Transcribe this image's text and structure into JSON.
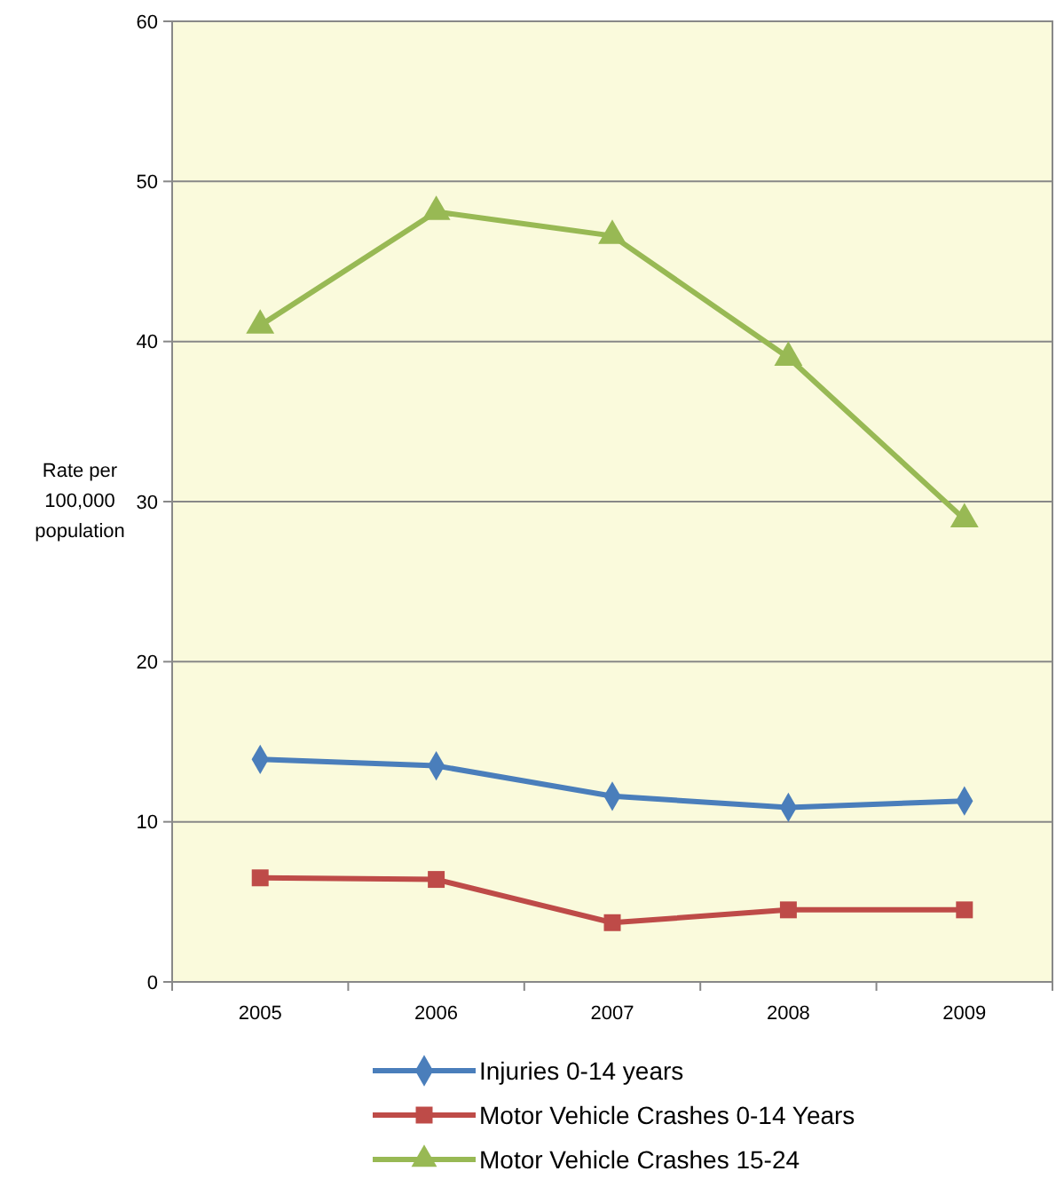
{
  "chart_data": {
    "type": "line",
    "ylabel": "Rate per 100,000 population",
    "categories": [
      "2005",
      "2006",
      "2007",
      "2008",
      "2009"
    ],
    "series": [
      {
        "name": "Injuries 0-14 years",
        "color": "#4a7ebb",
        "marker": "diamond",
        "values": [
          13.9,
          13.5,
          11.6,
          10.9,
          11.3
        ]
      },
      {
        "name": "Motor Vehicle Crashes 0-14 Years",
        "color": "#be4b48",
        "marker": "square",
        "values": [
          6.5,
          6.4,
          3.7,
          4.5,
          4.5
        ]
      },
      {
        "name": "Motor Vehicle Crashes 15-24",
        "color": "#98b954",
        "marker": "triangle",
        "values": [
          41.0,
          48.1,
          46.6,
          39.0,
          28.9
        ]
      }
    ],
    "ylim": [
      0,
      60
    ],
    "yticks": [
      0,
      10,
      20,
      30,
      40,
      50,
      60
    ],
    "grid": "y",
    "legend": "bottom"
  }
}
